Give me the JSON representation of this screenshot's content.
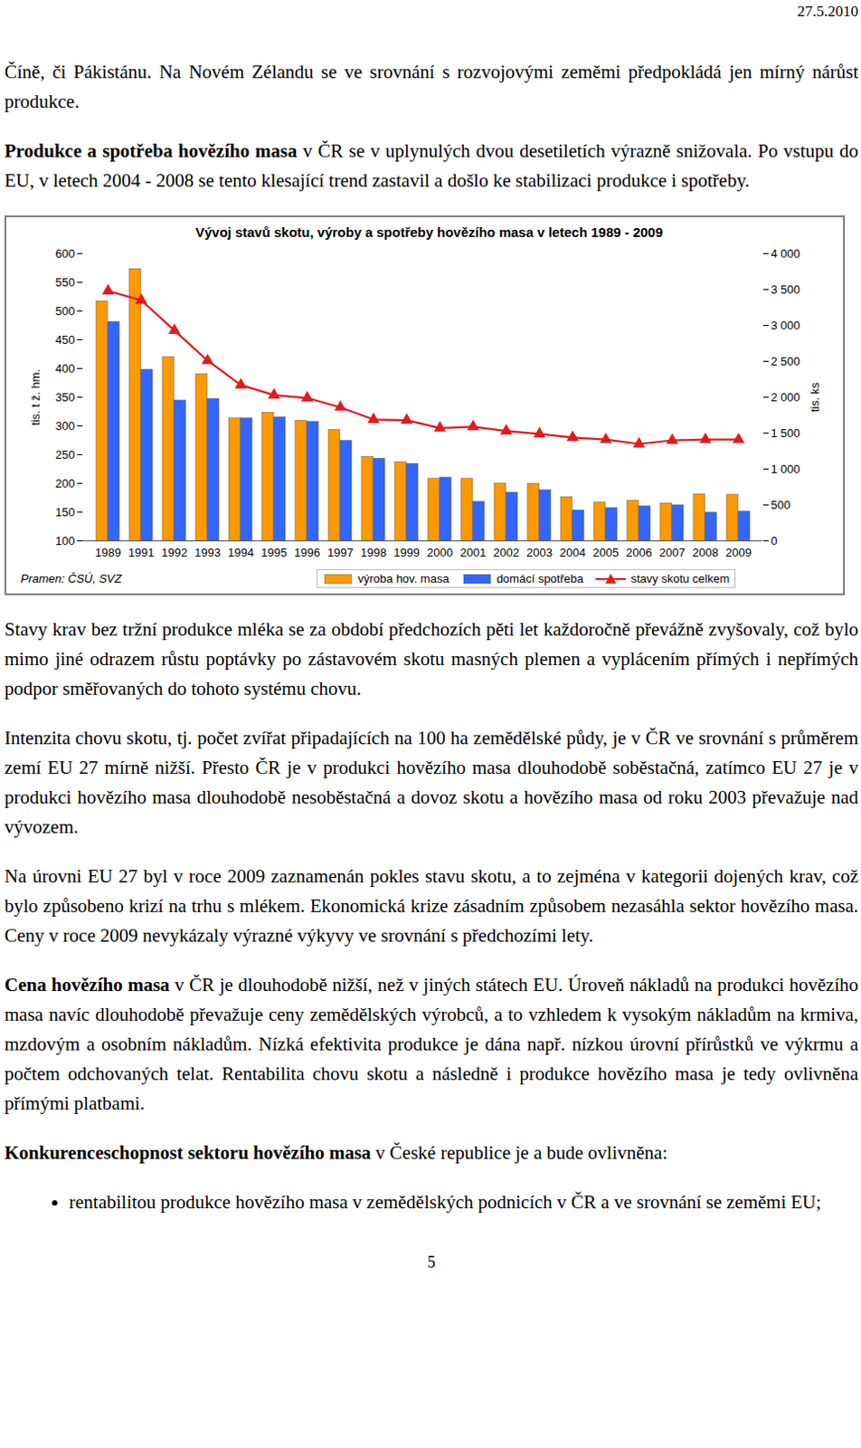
{
  "header": {
    "date": "27.5.2010"
  },
  "paragraphs_before": [
    {
      "text": "Číně, či Pákistánu. Na Novém Zélandu se ve srovnání s rozvojovými zeměmi předpokládá jen mírný nárůst produkce."
    },
    {
      "lead": "Produkce a spotřeba hovězího masa",
      "text": "v ČR se v uplynulých dvou desetiletích výrazně snižovala. Po vstupu do EU, v letech 2004 - 2008 se tento klesající trend zastavil a došlo ke stabilizaci produkce i spotřeby."
    }
  ],
  "chart_data": {
    "type": "bar",
    "title": "Vývoj stavů skotu, výroby a spotřeby hovězího masa v letech 1989 - 2009",
    "categories": [
      "1989",
      "1991",
      "1992",
      "1993",
      "1994",
      "1995",
      "1996",
      "1997",
      "1998",
      "1999",
      "2000",
      "2001",
      "2002",
      "2003",
      "2004",
      "2005",
      "2006",
      "2007",
      "2008",
      "2009"
    ],
    "series": [
      {
        "name": "výroba hov. masa",
        "color": "#ff9900",
        "values": [
          517,
          573,
          420,
          390,
          313,
          323,
          309,
          293,
          246,
          237,
          208,
          208,
          200,
          199,
          176,
          167,
          170,
          165,
          181,
          180
        ]
      },
      {
        "name": "domácí spotřeba",
        "color": "#3366ff",
        "values": [
          481,
          398,
          344,
          347,
          313,
          315,
          307,
          274,
          243,
          234,
          210,
          168,
          184,
          188,
          153,
          157,
          160,
          162,
          149,
          151
        ]
      },
      {
        "name": "stavy skotu celkem",
        "type": "line",
        "axis": "y2",
        "color": "#e31a1c",
        "marker": "triangle",
        "values": [
          3480,
          3350,
          2930,
          2510,
          2170,
          2030,
          1990,
          1860,
          1690,
          1680,
          1570,
          1590,
          1530,
          1490,
          1440,
          1410,
          1350,
          1400,
          1410,
          1410
        ]
      }
    ],
    "ylabel": "tis. t ž. hm.",
    "y2label": "tis. ks",
    "ylim": [
      100,
      600
    ],
    "yticks": [
      100,
      150,
      200,
      250,
      300,
      350,
      400,
      450,
      500,
      550,
      600
    ],
    "y2lim": [
      0,
      4000
    ],
    "y2ticks": [
      0,
      500,
      {
        "value": 1000,
        "label": "1 000"
      },
      {
        "value": 1500,
        "label": "1 500"
      },
      {
        "value": 2000,
        "label": "2 000"
      },
      {
        "value": 2500,
        "label": "2 500"
      },
      {
        "value": 3000,
        "label": "3 000"
      },
      {
        "value": 3500,
        "label": "3 500"
      },
      {
        "value": 4000,
        "label": "4 000"
      }
    ],
    "source": "Pramen: ČSÚ, SVZ",
    "legend": "bottom",
    "grid": false
  },
  "paragraphs_after": [
    {
      "text": "Stavy krav bez tržní produkce mléka se za období předchozích pěti let každoročně převážně zvyšovaly, což bylo mimo jiné odrazem růstu poptávky po zástavovém skotu masných plemen a vyplácením přímých i nepřímých podpor směřovaných do tohoto systému chovu."
    },
    {
      "text": "Intenzita chovu skotu, tj. počet zvířat připadajících na 100 ha zemědělské půdy, je v ČR ve srovnání s průměrem zemí EU 27 mírně nižší. Přesto ČR je v produkci hovězího masa dlouhodobě soběstačná, zatímco EU 27 je v produkci hovězího masa dlouhodobě nesoběstačná a dovoz skotu a hovězího masa od roku 2003 převažuje nad vývozem."
    },
    {
      "text": "Na úrovni EU 27 byl v roce 2009 zaznamenán pokles stavu skotu, a to zejména v kategorii dojených krav, což bylo způsobeno krizí na trhu s mlékem. Ekonomická krize zásadním způsobem nezasáhla sektor hovězího masa. Ceny v roce 2009 nevykázaly výrazné výkyvy ve srovnání s předchozími lety."
    },
    {
      "lead": "Cena hovězího masa",
      "text": "v ČR je dlouhodobě nižší, než v jiných státech EU. Úroveň nákladů na produkci hovězího masa navíc dlouhodobě převažuje ceny zemědělských výrobců, a to vzhledem k vysokým nákladům na krmiva, mzdovým a osobním nákladům. Nízká efektivita produkce je dána např. nízkou úrovní přírůstků ve výkrmu a počtem odchovaných telat. Rentabilita chovu skotu a následně i produkce hovězího masa je tedy ovlivněna přímými platbami."
    },
    {
      "lead": "Konkurenceschopnost sektoru hovězího masa",
      "text": "v České republice je a bude ovlivněna:"
    }
  ],
  "bullets": [
    "rentabilitou produkce hovězího masa v zemědělských podnicích v ČR a ve srovnání se zeměmi EU;"
  ],
  "page_number": "5"
}
